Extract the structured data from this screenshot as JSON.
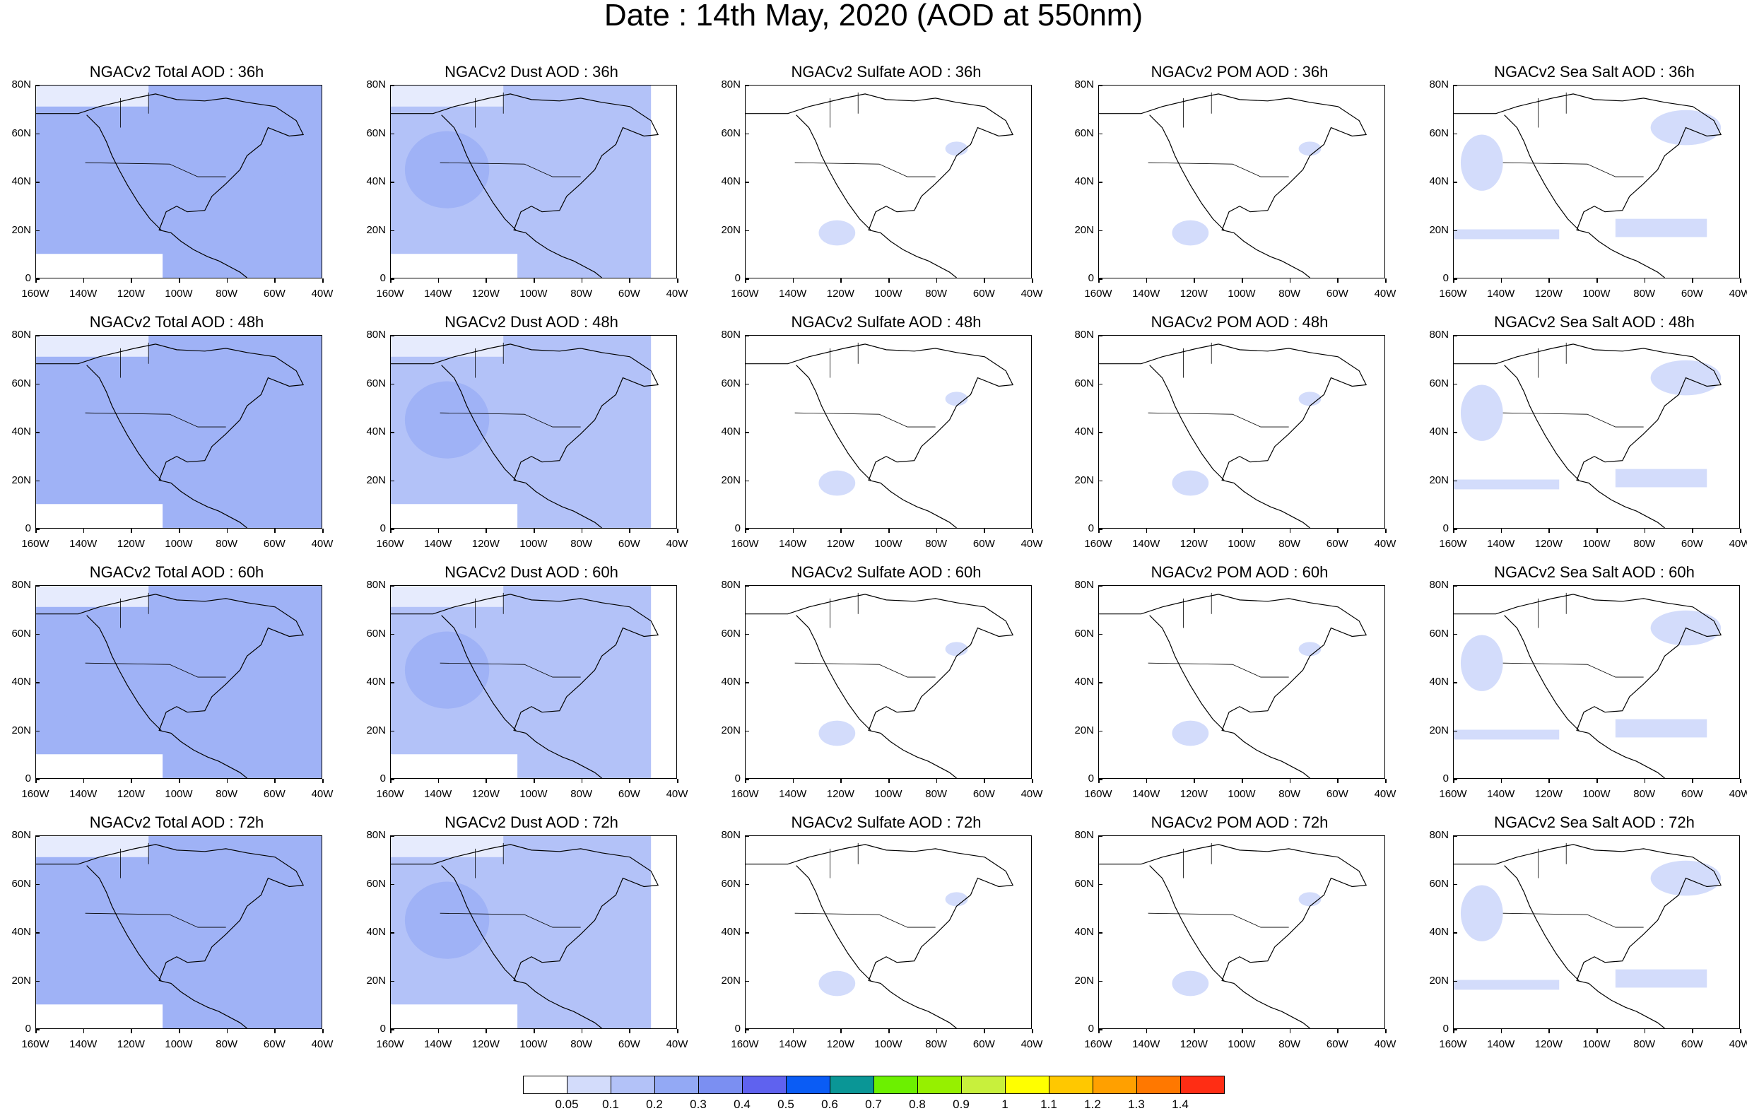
{
  "title": "Date : 14th May, 2020 (AOD at 550nm)",
  "lat_labels": [
    "80N",
    "60N",
    "40N",
    "20N",
    "0"
  ],
  "lon_labels": [
    "160W",
    "140W",
    "120W",
    "100W",
    "80W",
    "60W",
    "40W"
  ],
  "rows": [
    {
      "panels": [
        {
          "title": "NGACv2 Total AOD : 36h",
          "level": 3
        },
        {
          "title": "NGACv2 Dust AOD : 36h",
          "level": 2
        },
        {
          "title": "NGACv2 Sulfate AOD : 36h",
          "level": 0
        },
        {
          "title": "NGACv2 POM AOD : 36h",
          "level": 0
        },
        {
          "title": "NGACv2 Sea Salt AOD : 36h",
          "level": 1
        }
      ]
    },
    {
      "panels": [
        {
          "title": "NGACv2 Total AOD : 48h",
          "level": 3
        },
        {
          "title": "NGACv2 Dust AOD : 48h",
          "level": 2
        },
        {
          "title": "NGACv2 Sulfate AOD : 48h",
          "level": 0
        },
        {
          "title": "NGACv2 POM AOD : 48h",
          "level": 0
        },
        {
          "title": "NGACv2 Sea Salt AOD : 48h",
          "level": 1
        }
      ]
    },
    {
      "panels": [
        {
          "title": "NGACv2 Total AOD : 60h",
          "level": 3
        },
        {
          "title": "NGACv2 Dust AOD : 60h",
          "level": 2
        },
        {
          "title": "NGACv2 Sulfate AOD : 60h",
          "level": 0
        },
        {
          "title": "NGACv2 POM AOD : 60h",
          "level": 0
        },
        {
          "title": "NGACv2 Sea Salt AOD : 60h",
          "level": 1
        }
      ]
    },
    {
      "panels": [
        {
          "title": "NGACv2 Total AOD : 72h",
          "level": 3
        },
        {
          "title": "NGACv2 Dust AOD : 72h",
          "level": 2
        },
        {
          "title": "NGACv2 Sulfate AOD : 72h",
          "level": 0
        },
        {
          "title": "NGACv2 POM AOD : 72h",
          "level": 0
        },
        {
          "title": "NGACv2 Sea Salt  AOD : 72h",
          "level": 1
        }
      ]
    }
  ],
  "legend": {
    "labels": [
      "0.05",
      "0.1",
      "0.2",
      "0.3",
      "0.4",
      "0.5",
      "0.6",
      "0.7",
      "0.8",
      "0.9",
      "1",
      "1.1",
      "1.2",
      "1.3",
      "1.4"
    ],
    "colors": [
      "#ffffff",
      "#d3dcfb",
      "#b3c2f8",
      "#93a9f5",
      "#7b8ff2",
      "#5f62ef",
      "#0a5cf5",
      "#0a9696",
      "#6cf000",
      "#96f000",
      "#c8f03c",
      "#ffff00",
      "#ffc800",
      "#ffa000",
      "#ff7800",
      "#ff2d14"
    ]
  }
}
